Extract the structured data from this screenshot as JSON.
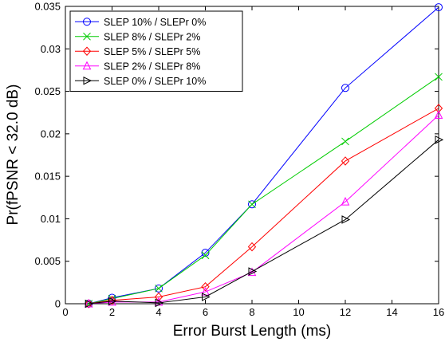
{
  "chart_data": {
    "type": "line",
    "xlabel": "Error Burst Length (ms)",
    "ylabel": "Pr(fPSNR < 32.0 dB)",
    "xlim": [
      0,
      16
    ],
    "ylim": [
      0,
      0.035
    ],
    "x_ticks": [
      0,
      2,
      4,
      6,
      8,
      10,
      12,
      14,
      16
    ],
    "y_ticks": [
      0,
      0.005,
      0.01,
      0.015,
      0.02,
      0.025,
      0.03,
      0.035
    ],
    "x_tick_labels": [
      "0",
      "2",
      "4",
      "6",
      "8",
      "10",
      "12",
      "14",
      "16"
    ],
    "y_tick_labels": [
      "0",
      "0.005",
      "0.01",
      "0.015",
      "0.02",
      "0.025",
      "0.03",
      "0.035"
    ],
    "grid": false,
    "legend_position": "top-left",
    "x": [
      1,
      2,
      4,
      6,
      8,
      12,
      16
    ],
    "series": [
      {
        "name": "SLEP 10% / SLEPr 0%",
        "color": "#0000ff",
        "marker": "circle",
        "values": [
          0.0,
          0.0007,
          0.0018,
          0.006,
          0.0117,
          0.0254,
          0.0349
        ]
      },
      {
        "name": "SLEP 8% / SLEPr 2%",
        "color": "#00cc00",
        "marker": "x",
        "values": [
          0.0,
          0.0006,
          0.0018,
          0.0057,
          0.0117,
          0.0191,
          0.0267
        ]
      },
      {
        "name": "SLEP 5% / SLEPr 5%",
        "color": "#ff0000",
        "marker": "diamond",
        "values": [
          0.0,
          0.0004,
          0.0008,
          0.002,
          0.0067,
          0.0168,
          0.023
        ]
      },
      {
        "name": "SLEP 2% / SLEPr 8%",
        "color": "#ff00ff",
        "marker": "triangle-up",
        "values": [
          0.0,
          0.0002,
          0.0002,
          0.0014,
          0.0037,
          0.012,
          0.0222
        ]
      },
      {
        "name": "SLEP 0% / SLEPr 10%",
        "color": "#000000",
        "marker": "triangle-right",
        "values": [
          0.0,
          0.0003,
          0.0001,
          0.0008,
          0.0038,
          0.0099,
          0.0193
        ]
      }
    ]
  }
}
